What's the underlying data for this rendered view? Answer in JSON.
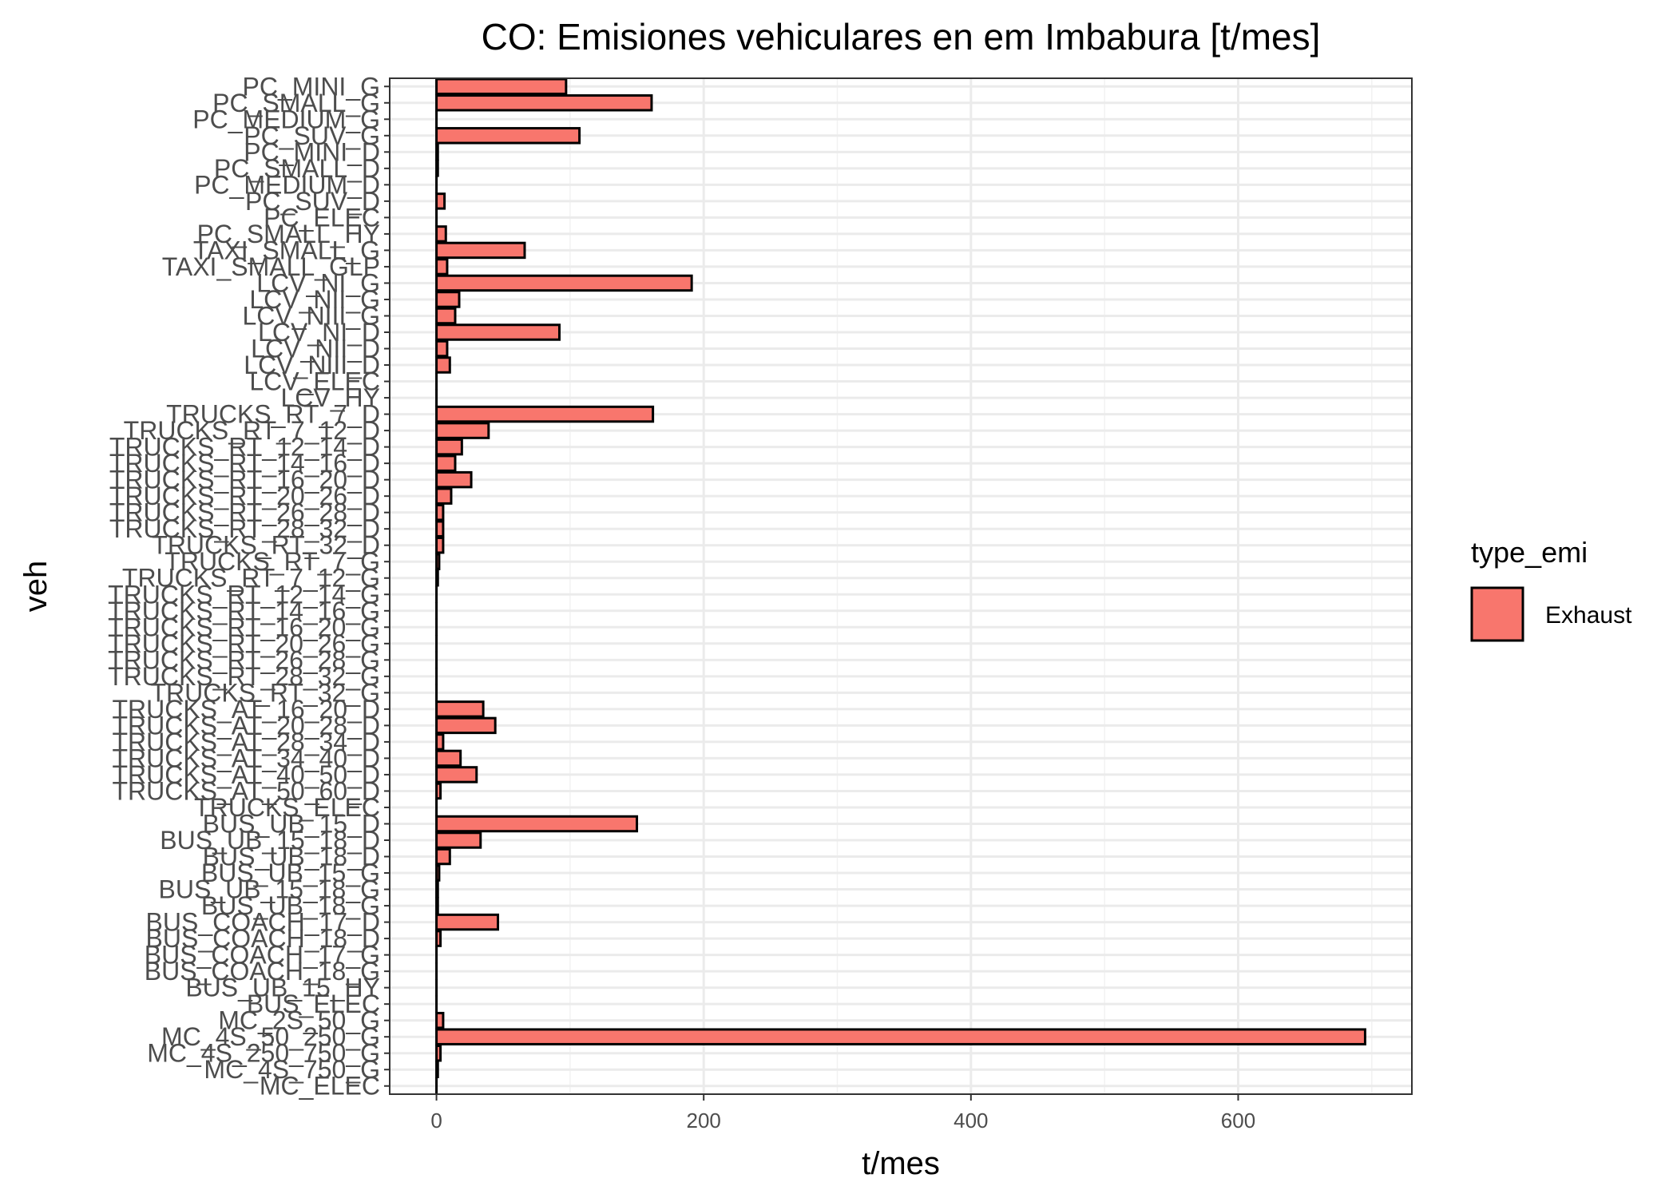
{
  "chart_data": {
    "type": "bar",
    "orientation": "horizontal",
    "title": "CO: Emisiones vehiculares en  em Imbabura [t/mes]",
    "xlabel": "t/mes",
    "ylabel": "veh",
    "xlim": [
      -35,
      730
    ],
    "xticks": [
      0,
      200,
      400,
      600
    ],
    "xtick_labels": [
      "0",
      "200",
      "400",
      "600"
    ],
    "grid": true,
    "legend": {
      "title": "type_emi",
      "position": "right"
    },
    "categories": [
      "PC_MINI_G",
      "PC_SMALL_G",
      "PC_MEDIUM_G",
      "PC_SUV_G",
      "PC_MINI_D",
      "PC_SMALL_D",
      "PC_MEDIUM_D",
      "PC_SUV_D",
      "PC_ELEC",
      "PC_SMALL_HY",
      "TAXI_SMALL_G",
      "TAXI_SMALL_GLP",
      "LCV_NI_G",
      "LCV_NII_G",
      "LCV_NIII_G",
      "LCV_NI_D",
      "LCV_NII_D",
      "LCV_NIII_D",
      "LCV_ELEC",
      "LCV_HY",
      "TRUCKS_RT_7_D",
      "TRUCKS_RT_7_12_D",
      "TRUCKS_RT_12_14_D",
      "TRUCKS_RT_14_16_D",
      "TRUCKS_RT_16_20_D",
      "TRUCKS_RT_20_26_D",
      "TRUCKS_RT_26_28_D",
      "TRUCKS_RT_28_32_D",
      "TRUCKS_RT_32_D",
      "TRUCKS_RT_7_G",
      "TRUCKS_RT_7_12_G",
      "TRUCKS_RT_12_14_G",
      "TRUCKS_RT_14_16_G",
      "TRUCKS_RT_16_20_G",
      "TRUCKS_RT_20_26_G",
      "TRUCKS_RT_26_28_G",
      "TRUCKS_RT_28_32_G",
      "TRUCKS_RT_32_G",
      "TRUCKS_AT_16_20_D",
      "TRUCKS_AT_20_28_D",
      "TRUCKS_AT_28_34_D",
      "TRUCKS_AT_34_40_D",
      "TRUCKS_AT_40_50_D",
      "TRUCKS_AT_50_60_D",
      "TRUCKS_ELEC",
      "BUS_UB_15_D",
      "BUS_UB_15_18_D",
      "BUS_UB_18_D",
      "BUS_UB_15_G",
      "BUS_UB_15_18_G",
      "BUS_UB_18_G",
      "BUS_COACH_17_D",
      "BUS_COACH_18_D",
      "BUS_COACH_17_G",
      "BUS_COACH_18_G",
      "BUS_UB_15_HY",
      "BUS_ELEC",
      "MC_2S_50_G",
      "MC_4S_50_250_G",
      "MC_4S_250_750_G",
      "MC_4S_750_G",
      "MC_ELEC"
    ],
    "series": [
      {
        "name": "Exhaust",
        "color": "#f8766d",
        "values": [
          97,
          161,
          0,
          107,
          1,
          1,
          0,
          6,
          0,
          7,
          66,
          8,
          191,
          17,
          14,
          92,
          8,
          10,
          0,
          0,
          162,
          39,
          19,
          14,
          26,
          11,
          5,
          5,
          5,
          2,
          1,
          0,
          0,
          0,
          0,
          0,
          0,
          0,
          35,
          44,
          5,
          18,
          30,
          3,
          0,
          150,
          33,
          10,
          2,
          1,
          1,
          46,
          3,
          0,
          0,
          0,
          0,
          5,
          695,
          3,
          1,
          0
        ]
      }
    ]
  }
}
